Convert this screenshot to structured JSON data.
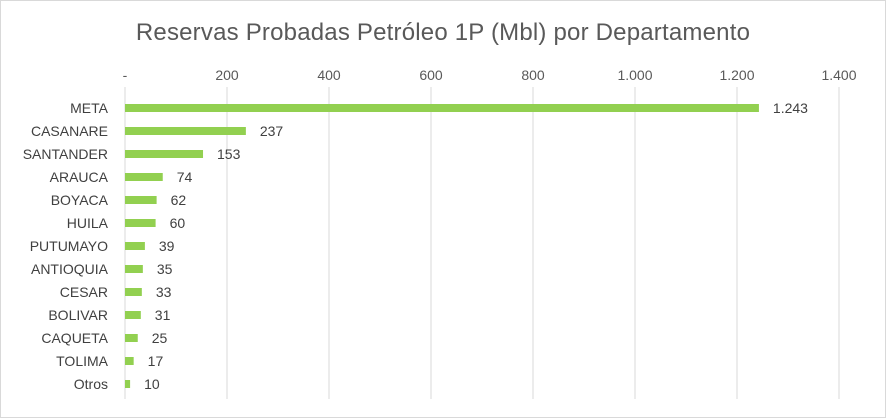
{
  "chart_data": {
    "type": "bar",
    "orientation": "horizontal",
    "title": "Reservas Probadas Petróleo 1P (Mbl) por Departamento",
    "categories": [
      "META",
      "CASANARE",
      "SANTANDER",
      "ARAUCA",
      "BOYACA",
      "HUILA",
      "PUTUMAYO",
      "ANTIOQUIA",
      "CESAR",
      "BOLIVAR",
      "CAQUETA",
      "TOLIMA",
      "Otros"
    ],
    "values": [
      1243,
      237,
      153,
      74,
      62,
      60,
      39,
      35,
      33,
      31,
      25,
      17,
      10
    ],
    "data_labels": [
      "1.243",
      "237",
      "153",
      "74",
      "62",
      "60",
      "39",
      "35",
      "33",
      "31",
      "25",
      "17",
      "10"
    ],
    "xlim": [
      0,
      1400
    ],
    "x_ticks": [
      0,
      200,
      400,
      600,
      800,
      1000,
      1200,
      1400
    ],
    "x_tick_labels": [
      "-",
      "200",
      "400",
      "600",
      "800",
      "1.000",
      "1.200",
      "1.400"
    ],
    "x_axis_position": "top",
    "grid": true,
    "legend": "none",
    "colors": {
      "bar": "#92d050",
      "grid": "#d9d9d9",
      "text": "#595959"
    }
  }
}
